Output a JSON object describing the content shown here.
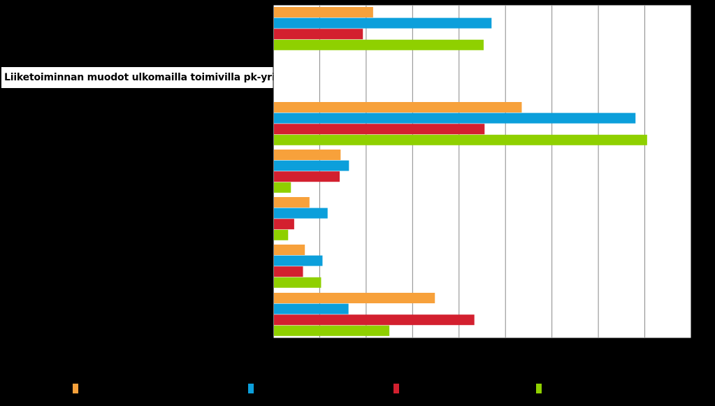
{
  "chart_data": {
    "type": "bar",
    "orientation": "horizontal",
    "title": "Liiketoiminnan muodot ulkomailla toimivilla pk-yrityksillä",
    "xlim": [
      0,
      90
    ],
    "x_gridline_step": 10,
    "grid": true,
    "legend_position": "bottom",
    "groups": [
      {
        "values": [
          21.5,
          47,
          19.3,
          45.3
        ]
      },
      {
        "values": [
          53.5,
          78,
          45.5,
          80.5
        ]
      },
      {
        "values": [
          14.5,
          16.3,
          14.3,
          3.8
        ]
      },
      {
        "values": [
          7.8,
          11.7,
          4.5,
          3.2
        ]
      },
      {
        "values": [
          6.8,
          10.6,
          6.4,
          10.3
        ]
      },
      {
        "values": [
          34.8,
          16.2,
          43.3,
          25
        ]
      }
    ],
    "series": [
      {
        "color": "#f7a13b"
      },
      {
        "color": "#0c9fdb"
      },
      {
        "color": "#d3202f"
      },
      {
        "color": "#8fd000"
      }
    ]
  }
}
